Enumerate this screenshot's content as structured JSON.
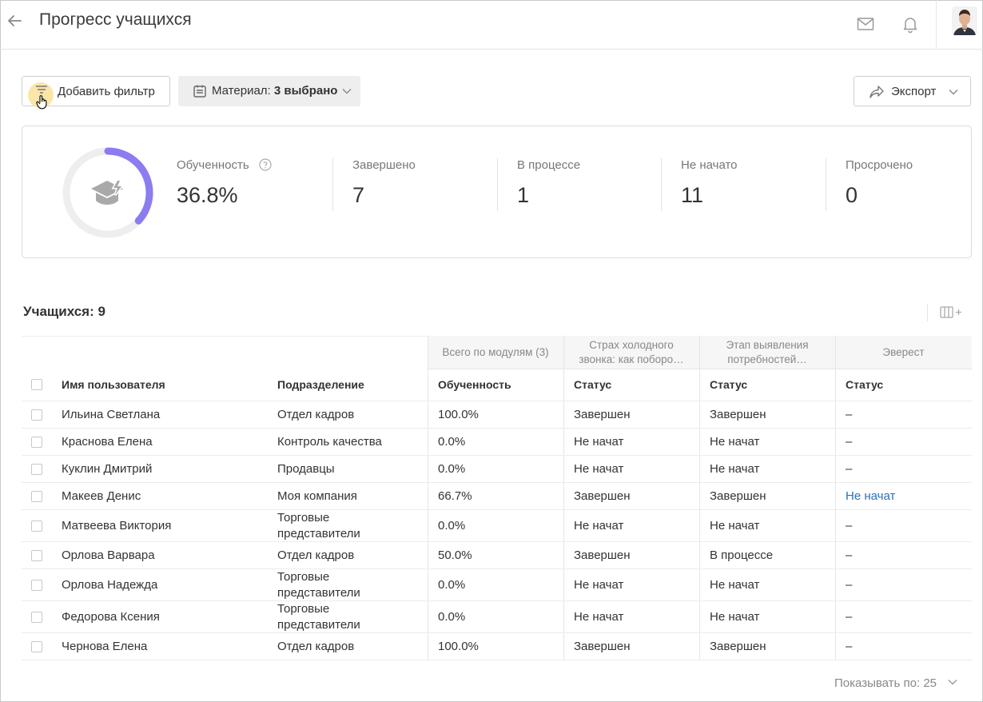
{
  "header": {
    "title": "Прогресс учащихся",
    "icons": {
      "back": "arrow-left-icon",
      "mail": "envelope-icon",
      "bell": "bell-icon"
    }
  },
  "toolbar": {
    "add_filter_label": "Добавить фильтр",
    "material_prefix": "Материал:",
    "material_value": "3 выбрано",
    "export_label": "Экспорт"
  },
  "stats": {
    "training_label": "Обученность",
    "training_value": "36.8%",
    "training_progress": 0.368,
    "completed_label": "Завершено",
    "completed_value": "7",
    "in_progress_label": "В процессе",
    "in_progress_value": "1",
    "not_started_label": "Не начато",
    "not_started_value": "11",
    "overdue_label": "Просрочено",
    "overdue_value": "0"
  },
  "learners": {
    "title": "Учащихся: 9"
  },
  "table": {
    "group_headers": [
      "Всего по модулям (3)",
      "Страх холодного звонка: как поборо…",
      "Этап выявления потребностей…",
      "Эверест"
    ],
    "col_name": "Имя пользователя",
    "col_dept": "Подразделение",
    "col_training": "Обученность",
    "col_status": "Статус",
    "rows": [
      {
        "name": "Ильина Светлана",
        "dept": "Отдел кадров",
        "training": "100.0%",
        "s1": "Завершен",
        "s2": "Завершен",
        "s3": "–"
      },
      {
        "name": "Краснова Елена",
        "dept": "Контроль качества",
        "training": "0.0%",
        "s1": "Не начат",
        "s2": "Не начат",
        "s3": "–"
      },
      {
        "name": "Куклин Дмитрий",
        "dept": "Продавцы",
        "training": "0.0%",
        "s1": "Не начат",
        "s2": "Не начат",
        "s3": "–"
      },
      {
        "name": "Макеев Денис",
        "dept": "Моя компания",
        "training": "66.7%",
        "s1": "Завершен",
        "s2": "Завершен",
        "s3": "Не начат"
      },
      {
        "name": "Матвеева Виктория",
        "dept": "Торговые представители",
        "training": "0.0%",
        "s1": "Не начат",
        "s2": "Не начат",
        "s3": "–"
      },
      {
        "name": "Орлова Варвара",
        "dept": "Отдел кадров",
        "training": "50.0%",
        "s1": "Завершен",
        "s2": "В процессе",
        "s3": "–"
      },
      {
        "name": "Орлова Надежда",
        "dept": "Торговые представители",
        "training": "0.0%",
        "s1": "Не начат",
        "s2": "Не начат",
        "s3": "–"
      },
      {
        "name": "Федорова Ксения",
        "dept": "Торговые представители",
        "training": "0.0%",
        "s1": "Не начат",
        "s2": "Не начат",
        "s3": "–"
      },
      {
        "name": "Чернова Елена",
        "dept": "Отдел кадров",
        "training": "100.0%",
        "s1": "Завершен",
        "s2": "Завершен",
        "s3": "–"
      }
    ]
  },
  "pager": {
    "label": "Показывать по: 25"
  },
  "colors": {
    "accent": "#8b7cf0",
    "link": "#2d6fb7"
  }
}
